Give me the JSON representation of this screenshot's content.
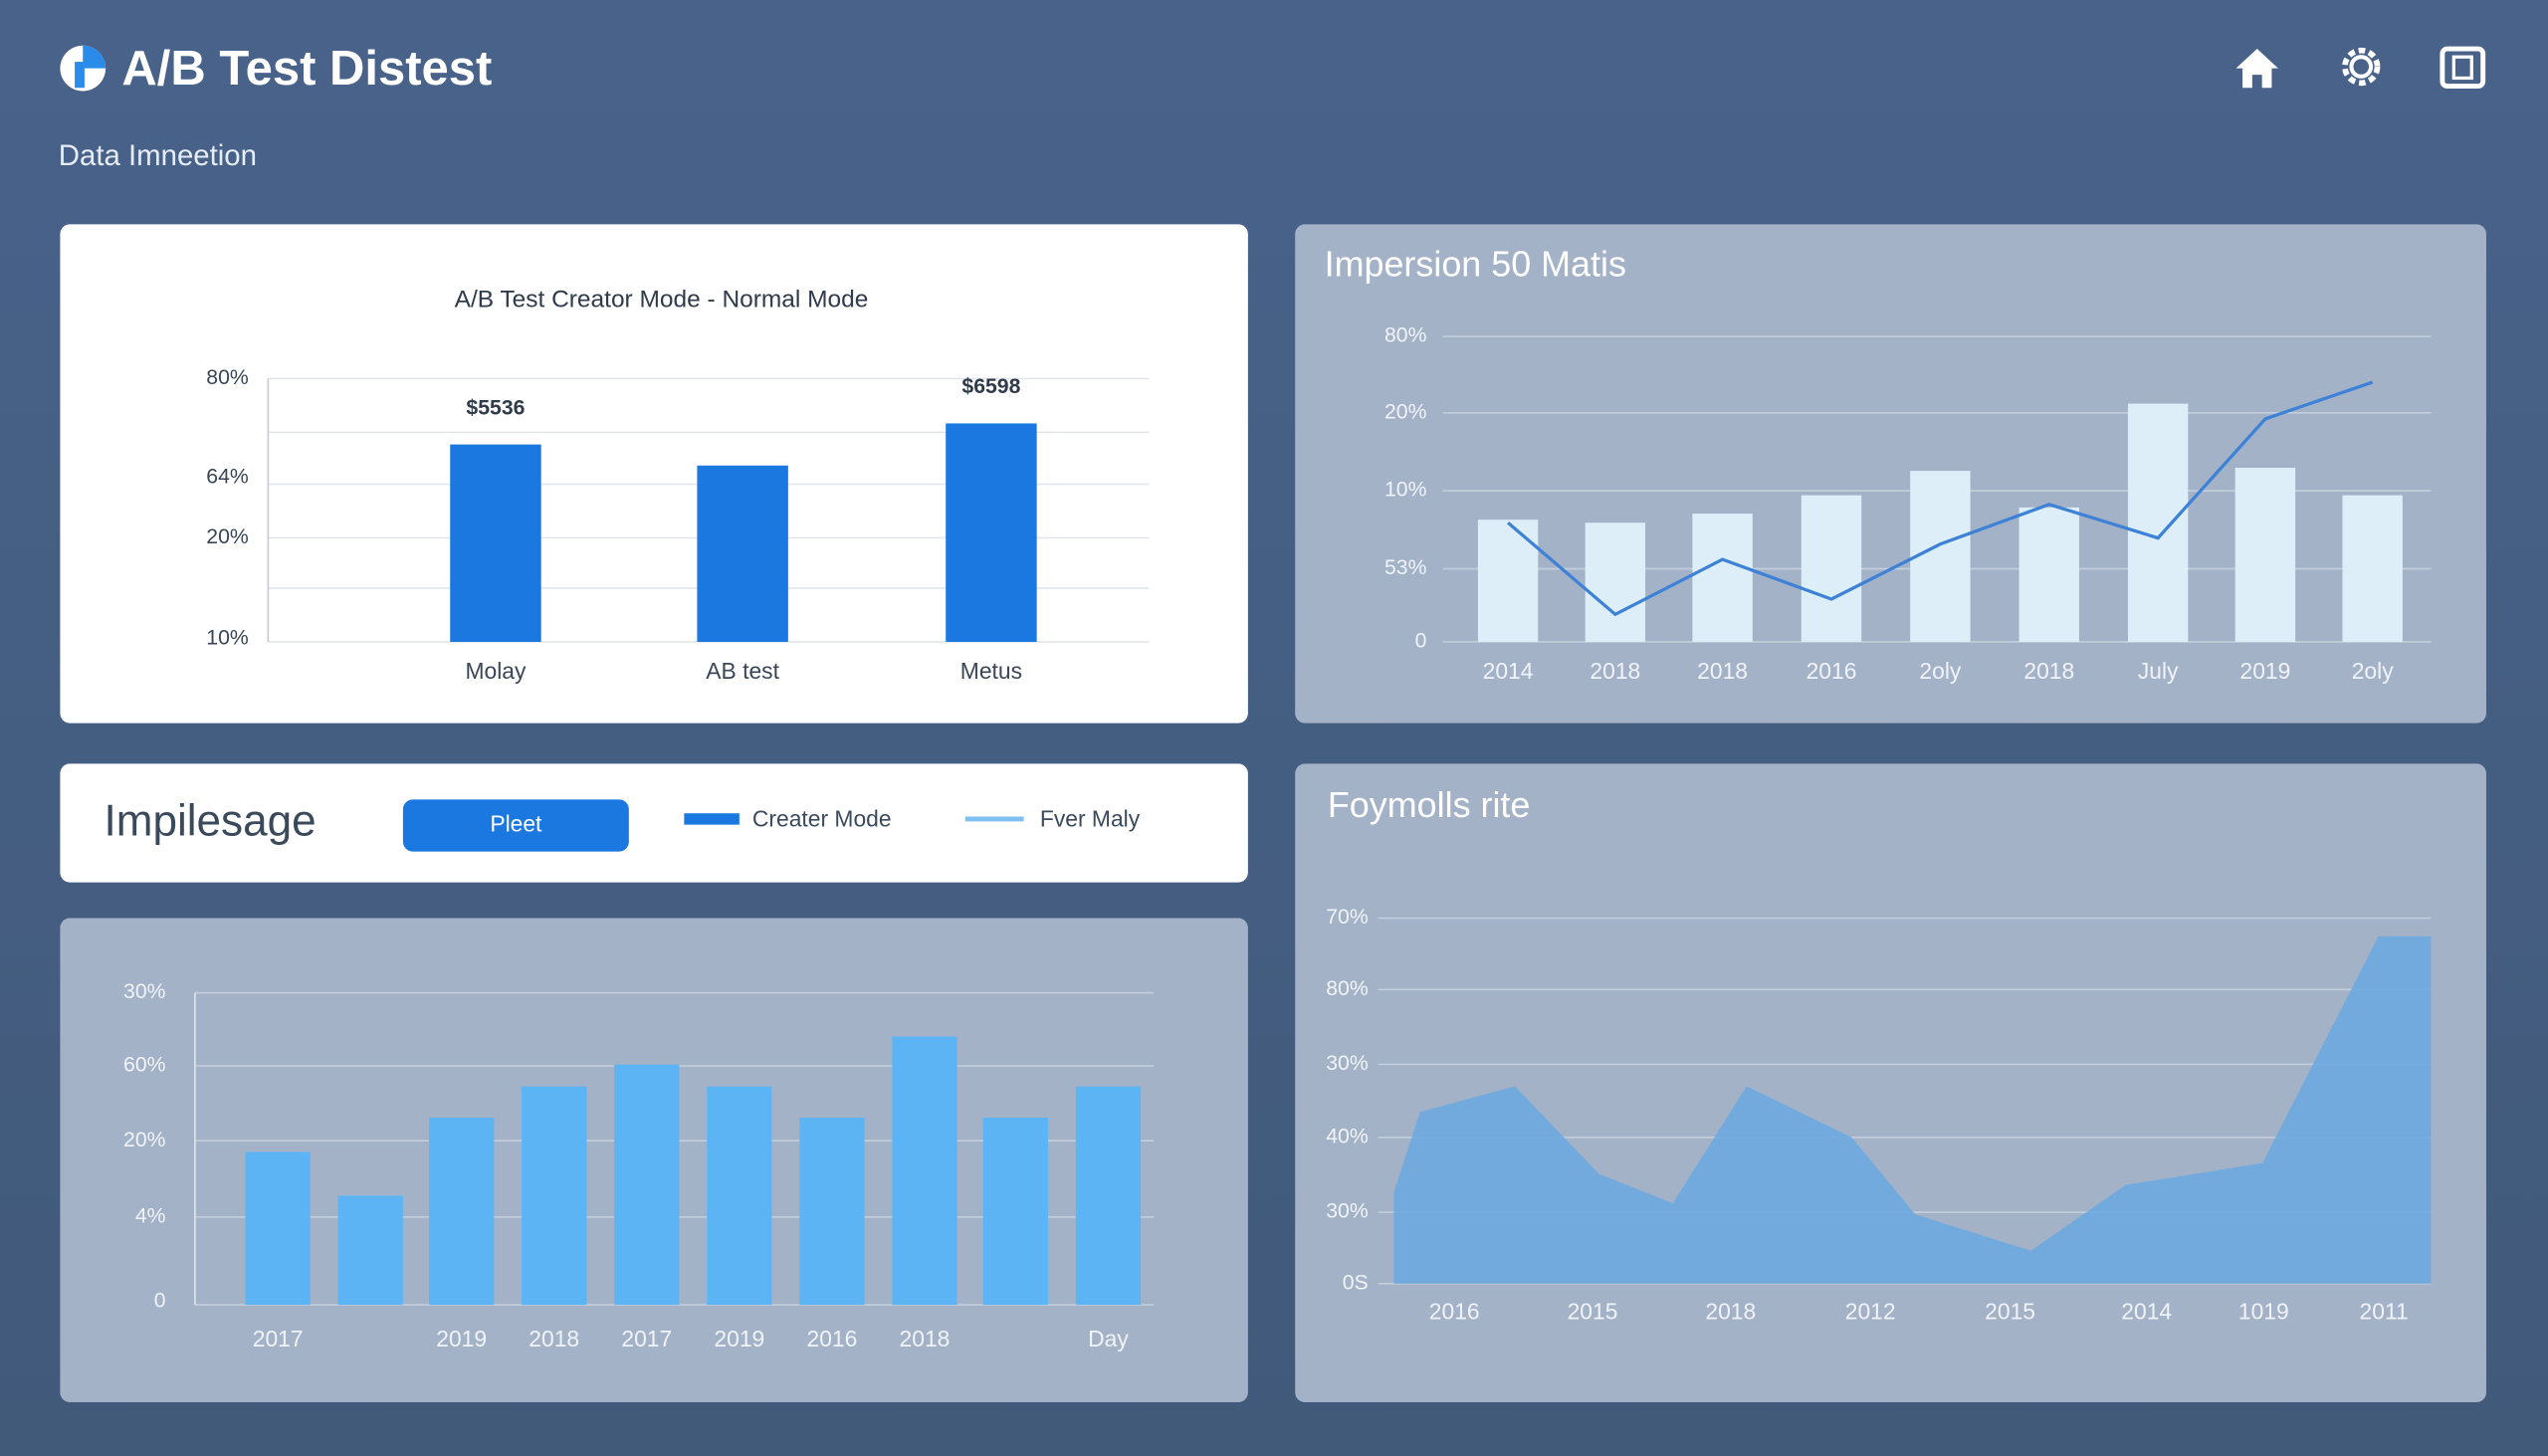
{
  "header": {
    "title": "A/B Test Distest",
    "subtitle": "Data Imneetion"
  },
  "charts": [
    {
      "type": "bar",
      "title": "A/B Test Creator Mode - Normal Mode",
      "y_labels": [
        "80%",
        "64%",
        "20%",
        "10%"
      ],
      "categories": [
        "Molay",
        "AB test",
        "Metus"
      ],
      "values": [
        75,
        67,
        83
      ],
      "color": "#1a78e0",
      "ylim": [
        0,
        100
      ],
      "annotations": [
        "$5536",
        "$6598"
      ]
    },
    {
      "type": "bar-line",
      "title": "Impersion 50 Matis",
      "y_labels": [
        "80%",
        "20%",
        "10%",
        "53%",
        "0"
      ],
      "categories": [
        "2014",
        "2018",
        "2018",
        "2016",
        "2oly",
        "2018",
        "July",
        "2019",
        "2oly"
      ],
      "series": [
        {
          "color": "#ddeef8",
          "values": [
            40,
            39,
            42,
            48,
            56,
            44,
            78,
            57,
            48
          ]
        },
        {
          "color": "#3d82d6",
          "values": [
            39,
            9,
            27,
            14,
            32,
            45,
            34,
            73,
            85
          ]
        }
      ],
      "ylim": [
        0,
        100
      ]
    },
    {
      "type": "bar",
      "y_labels": [
        "30%",
        "60%",
        "20%",
        "4%",
        "0"
      ],
      "categories": [
        "2017",
        null,
        "2019",
        "2018",
        "2017",
        "2019",
        "2016",
        "2018",
        null,
        "Day"
      ],
      "values": [
        49,
        35,
        60,
        70,
        77,
        70,
        60,
        86,
        60,
        70
      ],
      "color": "#5db4f5",
      "ylim": [
        0,
        100
      ]
    },
    {
      "type": "area",
      "title": "Foymolls rite",
      "y_labels": [
        "70%",
        "80%",
        "30%",
        "40%",
        "30%",
        "0S"
      ],
      "x_labels": [
        "2016",
        "2015",
        "2018",
        "2012",
        "2015",
        "2014",
        "1019",
        "2011"
      ],
      "x": [
        1.5,
        4,
        13,
        21,
        28,
        35,
        45,
        51,
        62,
        71,
        84,
        95,
        100
      ],
      "values": [
        25,
        47,
        54,
        30,
        22,
        54,
        40,
        19,
        9,
        27,
        33,
        95,
        95
      ],
      "color": "#6aa8e2",
      "xlim": [
        0,
        100
      ],
      "ylim": [
        0,
        100
      ]
    }
  ],
  "controls": {
    "heading": "Impilesage",
    "button": "Pleet",
    "legend": [
      {
        "name": "Creater Mode",
        "color": "#1a78e0"
      },
      {
        "name": "Fver Maly",
        "color": "#7fc0f0"
      }
    ]
  }
}
